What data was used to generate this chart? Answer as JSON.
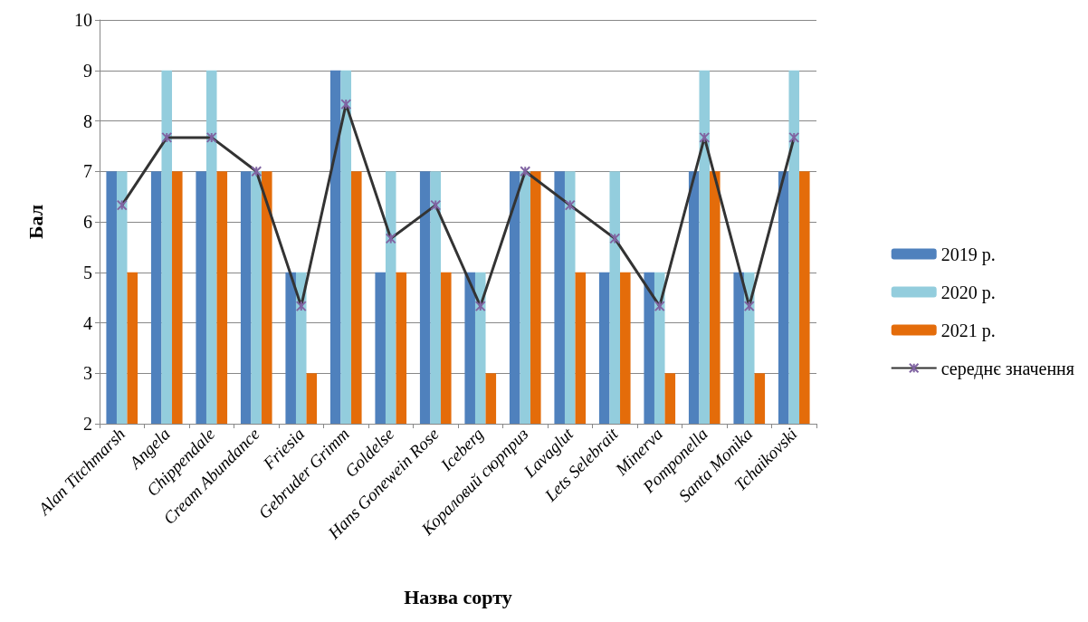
{
  "chart_data": {
    "type": "bar",
    "xlabel": "Назва сорту",
    "ylabel": "Бал",
    "categories": [
      "Alan Titchmarsh",
      "Angela",
      "Chippendale",
      "Cream Abundance",
      "Friesia",
      "Gebruder Grimm",
      "Goldelse",
      "Hans Gonewein Rose",
      "Iceberg",
      "Кораловий сюрприз",
      "Lavaglut",
      "Lets Selebrait",
      "Minerva",
      "Pomponella",
      "Santa Monika",
      "Tchaikovski"
    ],
    "series": [
      {
        "name": "2019 р.",
        "color": "#4f81bd",
        "values": [
          7,
          7,
          7,
          7,
          5,
          9,
          5,
          7,
          5,
          7,
          7,
          5,
          5,
          7,
          5,
          7
        ]
      },
      {
        "name": "2020 р.",
        "color": "#93cddd",
        "values": [
          7,
          9,
          9,
          7,
          5,
          9,
          7,
          7,
          5,
          7,
          7,
          7,
          5,
          9,
          5,
          9
        ]
      },
      {
        "name": "2021 р.",
        "color": "#e46c0a",
        "values": [
          5,
          7,
          7,
          7,
          3,
          7,
          5,
          5,
          3,
          7,
          5,
          5,
          3,
          7,
          3,
          7
        ]
      },
      {
        "name": "середнє значення",
        "type": "line",
        "color": "#333333",
        "marker": "cross",
        "values": [
          6.33,
          7.67,
          7.67,
          7,
          4.33,
          8.33,
          5.67,
          6.33,
          4.33,
          7,
          6.33,
          5.67,
          4.33,
          7.67,
          4.33,
          7.67
        ]
      }
    ],
    "ylim": [
      2,
      10
    ],
    "yticks": [
      2,
      3,
      4,
      5,
      6,
      7,
      8,
      9,
      10
    ],
    "grid": "y",
    "legend": "right"
  }
}
